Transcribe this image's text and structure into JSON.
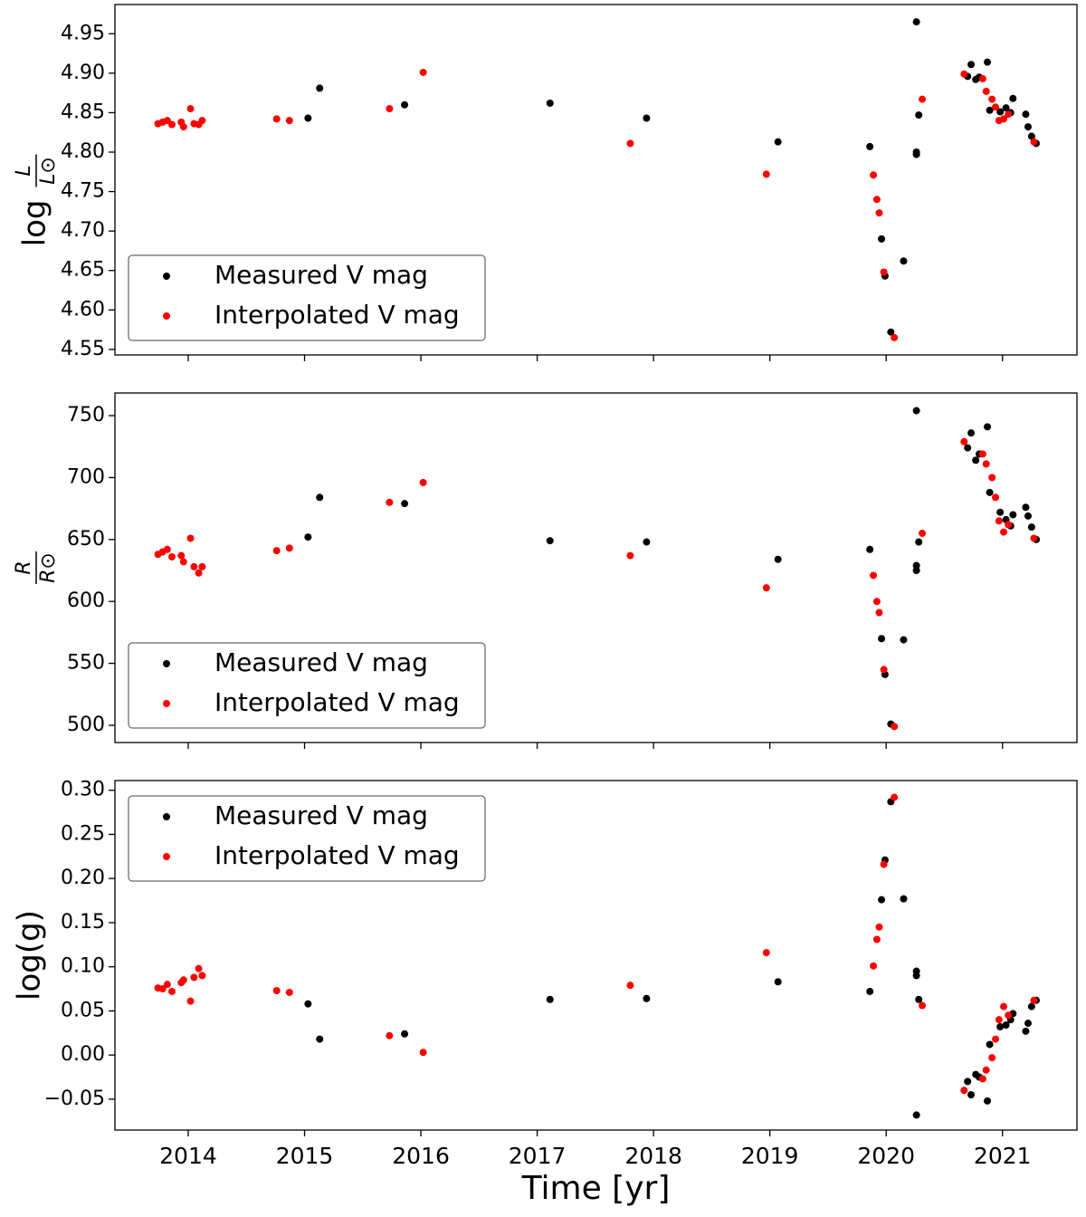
{
  "chart_data": [
    {
      "type": "scatter",
      "ylabel": {
        "prefix": "log",
        "numerator": "L",
        "denominator": "L⊙"
      },
      "xlim": [
        2013.37,
        2021.64
      ],
      "xticks": [
        2014,
        2015,
        2016,
        2017,
        2018,
        2019,
        2020,
        2021
      ],
      "ylim": [
        4.543,
        4.987
      ],
      "yticks": [
        4.55,
        {
          "value": 4.6,
          "label": "4.60"
        },
        4.65,
        {
          "value": 4.7,
          "label": "4.70"
        },
        4.75,
        {
          "value": 4.8,
          "label": "4.80"
        },
        4.85,
        {
          "value": 4.9,
          "label": "4.90"
        },
        4.95
      ],
      "legend": "lower left",
      "series": [
        {
          "name": "Measured V mag",
          "color": "#000000",
          "x": [
            2015.03,
            2015.13,
            2015.86,
            2017.11,
            2017.94,
            2019.07,
            2019.86,
            2019.96,
            2019.99,
            2020.04,
            2020.15,
            2020.26,
            2020.26,
            2020.26,
            2020.28,
            2020.7,
            2020.73,
            2020.77,
            2020.8,
            2020.87,
            2020.89,
            2020.98,
            2021.03,
            2021.07,
            2021.09,
            2021.2,
            2021.22,
            2021.25,
            2021.29
          ],
          "values": [
            4.843,
            4.881,
            4.86,
            4.862,
            4.843,
            4.813,
            4.807,
            4.69,
            4.643,
            4.572,
            4.662,
            4.965,
            4.8,
            4.797,
            4.847,
            4.896,
            4.911,
            4.892,
            4.895,
            4.914,
            4.853,
            4.851,
            4.856,
            4.85,
            4.868,
            4.848,
            4.832,
            4.82,
            4.811
          ]
        },
        {
          "name": "Interpolated V mag",
          "color": "#ff0000",
          "x": [
            2013.74,
            2013.78,
            2013.82,
            2013.86,
            2013.94,
            2013.96,
            2014.02,
            2014.05,
            2014.09,
            2014.12,
            2014.76,
            2014.87,
            2015.73,
            2016.02,
            2017.8,
            2018.97,
            2019.89,
            2019.92,
            2019.94,
            2019.98,
            2020.07,
            2020.31,
            2020.67,
            2020.83,
            2020.86,
            2020.91,
            2020.94,
            2020.97,
            2021.01,
            2021.05,
            2021.27
          ],
          "values": [
            4.836,
            4.838,
            4.84,
            4.835,
            4.838,
            4.832,
            4.855,
            4.836,
            4.835,
            4.84,
            4.842,
            4.84,
            4.855,
            4.901,
            4.811,
            4.772,
            4.771,
            4.74,
            4.723,
            4.648,
            4.565,
            4.867,
            4.899,
            4.893,
            4.877,
            4.867,
            4.857,
            4.84,
            4.842,
            4.848,
            4.813
          ]
        }
      ]
    },
    {
      "type": "scatter",
      "ylabel": {
        "numerator": "R",
        "denominator": "R⊙"
      },
      "xlim": [
        2013.37,
        2021.64
      ],
      "xticks": [
        2014,
        2015,
        2016,
        2017,
        2018,
        2019,
        2020,
        2021
      ],
      "ylim": [
        486.1,
        768.3
      ],
      "yticks": [
        500,
        550,
        600,
        650,
        700,
        750
      ],
      "legend": "lower left",
      "series": [
        {
          "name": "Measured V mag",
          "color": "#000000",
          "x": [
            2015.03,
            2015.13,
            2015.86,
            2017.11,
            2017.94,
            2019.07,
            2019.86,
            2019.96,
            2019.99,
            2020.04,
            2020.15,
            2020.26,
            2020.26,
            2020.26,
            2020.28,
            2020.7,
            2020.73,
            2020.77,
            2020.8,
            2020.87,
            2020.89,
            2020.98,
            2021.03,
            2021.07,
            2021.09,
            2021.2,
            2021.22,
            2021.25,
            2021.29
          ],
          "values": [
            652,
            684,
            679,
            649,
            648,
            634,
            642,
            570,
            541,
            501,
            569,
            754,
            629,
            625,
            648,
            724,
            736,
            714,
            719,
            741,
            688,
            672,
            666,
            661,
            670,
            676,
            669,
            660,
            650
          ]
        },
        {
          "name": "Interpolated V mag",
          "color": "#ff0000",
          "x": [
            2013.74,
            2013.78,
            2013.82,
            2013.86,
            2013.94,
            2013.96,
            2014.02,
            2014.05,
            2014.09,
            2014.12,
            2014.76,
            2014.87,
            2015.73,
            2016.02,
            2017.8,
            2018.97,
            2019.89,
            2019.92,
            2019.94,
            2019.98,
            2020.07,
            2020.31,
            2020.67,
            2020.83,
            2020.86,
            2020.91,
            2020.94,
            2020.97,
            2021.01,
            2021.05,
            2021.27
          ],
          "values": [
            638,
            640,
            642,
            636,
            637,
            632,
            651,
            628,
            623,
            628,
            641,
            643,
            680,
            696,
            637,
            611,
            621,
            600,
            591,
            545,
            499,
            655,
            729,
            719,
            711,
            700,
            684,
            665,
            656,
            662,
            651
          ]
        }
      ]
    },
    {
      "type": "scatter",
      "ylabel": {
        "text": "log(g)"
      },
      "xlabel": "Time [yr]",
      "xlim": [
        2013.37,
        2021.64
      ],
      "xticks": [
        2014,
        2015,
        2016,
        2017,
        2018,
        2019,
        2020,
        2021
      ],
      "ylim": [
        -0.085,
        0.311
      ],
      "yticks": [
        {
          "value": -0.05,
          "label": "−0.05"
        },
        {
          "value": 0,
          "label": "0.00"
        },
        0.05,
        {
          "value": 0.1,
          "label": "0.10"
        },
        0.15,
        {
          "value": 0.2,
          "label": "0.20"
        },
        0.25,
        {
          "value": 0.3,
          "label": "0.30"
        }
      ],
      "legend": "upper left",
      "series": [
        {
          "name": "Measured V mag",
          "color": "#000000",
          "x": [
            2015.03,
            2015.13,
            2015.86,
            2017.11,
            2017.94,
            2019.07,
            2019.86,
            2019.96,
            2019.99,
            2020.04,
            2020.15,
            2020.26,
            2020.26,
            2020.26,
            2020.28,
            2020.7,
            2020.73,
            2020.77,
            2020.8,
            2020.87,
            2020.89,
            2020.98,
            2021.03,
            2021.07,
            2021.09,
            2021.2,
            2021.22,
            2021.25,
            2021.29
          ],
          "values": [
            0.058,
            0.018,
            0.024,
            0.063,
            0.064,
            0.083,
            0.072,
            0.176,
            0.221,
            0.287,
            0.177,
            -0.068,
            0.095,
            0.09,
            0.063,
            -0.03,
            -0.045,
            -0.022,
            -0.025,
            -0.052,
            0.012,
            0.032,
            0.034,
            0.04,
            0.047,
            0.027,
            0.036,
            0.055,
            0.062
          ]
        },
        {
          "name": "Interpolated V mag",
          "color": "#ff0000",
          "x": [
            2013.74,
            2013.78,
            2013.82,
            2013.86,
            2013.94,
            2013.96,
            2014.02,
            2014.05,
            2014.09,
            2014.12,
            2014.76,
            2014.87,
            2015.73,
            2016.02,
            2017.8,
            2018.97,
            2019.89,
            2019.92,
            2019.94,
            2019.98,
            2020.07,
            2020.31,
            2020.67,
            2020.83,
            2020.86,
            2020.91,
            2020.94,
            2020.97,
            2021.01,
            2021.05,
            2021.27
          ],
          "values": [
            0.076,
            0.075,
            0.08,
            0.072,
            0.082,
            0.085,
            0.061,
            0.088,
            0.098,
            0.09,
            0.073,
            0.071,
            0.022,
            0.003,
            0.079,
            0.116,
            0.101,
            0.131,
            0.145,
            0.216,
            0.292,
            0.056,
            -0.04,
            -0.027,
            -0.017,
            -0.003,
            0.018,
            0.04,
            0.055,
            0.045,
            0.062
          ]
        }
      ]
    }
  ]
}
